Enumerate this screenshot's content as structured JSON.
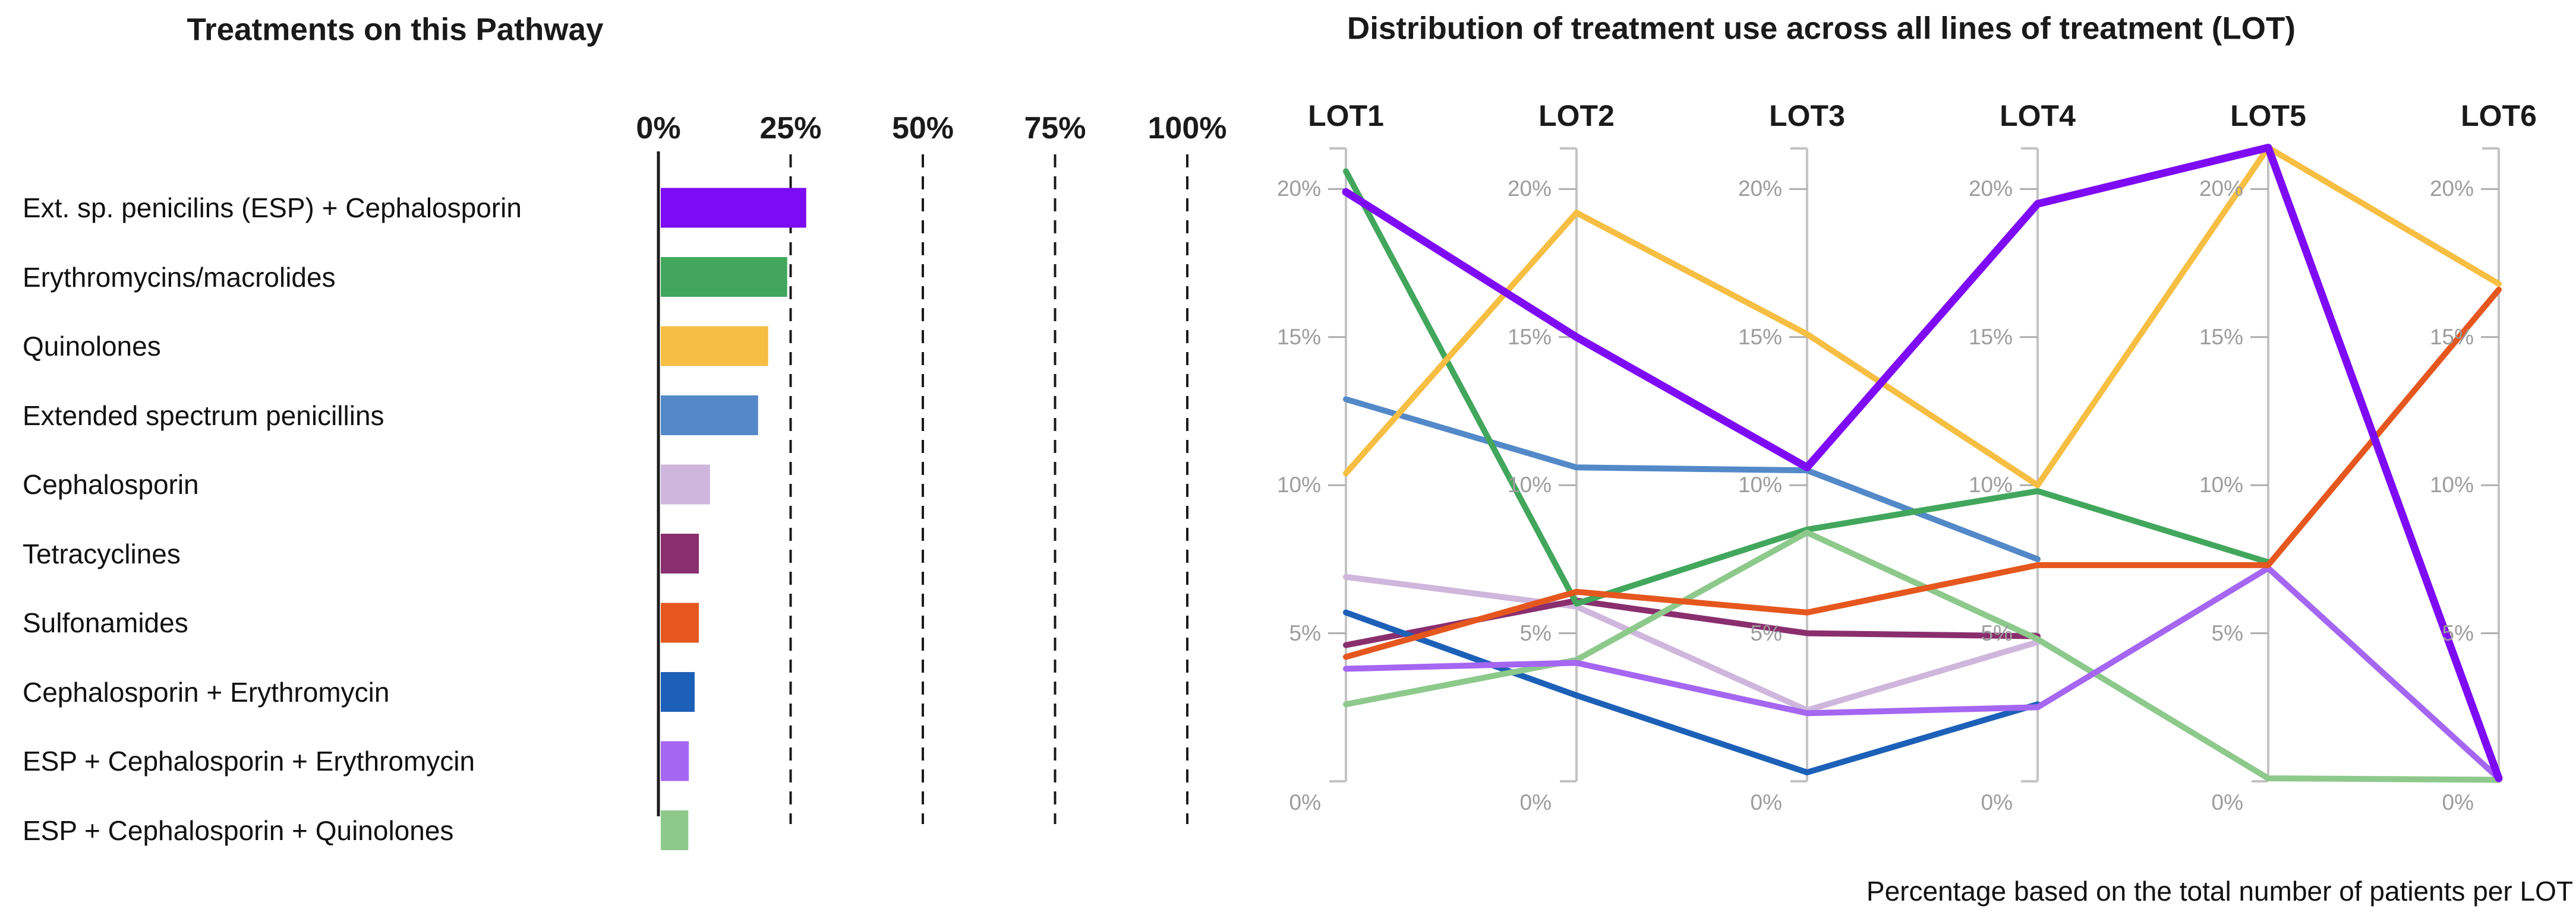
{
  "left_chart": {
    "title": "Treatments on this Pathway"
  },
  "right_chart": {
    "title": "Distribution of treatment use across all lines of treatment (LOT)",
    "footnote": "Percentage based on the total number of patients per LOT"
  },
  "chart_data": [
    {
      "type": "bar",
      "orientation": "horizontal",
      "title": "Treatments on this Pathway",
      "categories": [
        "Ext. sp. penicilins (ESP) + Cephalosporin",
        "Erythromycins/macrolides",
        "Quinolones",
        "Extended spectrum penicillins",
        "Cephalosporin",
        "Tetracyclines",
        "Sulfonamides",
        "Cephalosporin + Erythromycin",
        "ESP + Cephalosporin + Erythromycin",
        "ESP + Cephalosporin + Quinolones"
      ],
      "values": [
        27.5,
        23.9,
        20.3,
        18.4,
        9.3,
        7.2,
        7.2,
        6.4,
        5.3,
        5.2
      ],
      "colors": [
        "#7E0BF5",
        "#42A75C",
        "#F6BE42",
        "#5389C8",
        "#CFB6DC",
        "#8A2E6E",
        "#E5571E",
        "#1D60B8",
        "#A566F2",
        "#8DC98B"
      ],
      "x_ticks": [
        "0%",
        "25%",
        "50%",
        "75%",
        "100%"
      ],
      "xlim": [
        0,
        100
      ],
      "grid": "vertical dashed at 25/50/75/100, solid axis at 0"
    },
    {
      "type": "line",
      "variant": "parallel-coordinates",
      "title": "Distribution of treatment use across all lines of treatment (LOT)",
      "footnote": "Percentage based on the total number of patients per LOT",
      "x": [
        "LOT1",
        "LOT2",
        "LOT3",
        "LOT4",
        "LOT5",
        "LOT6"
      ],
      "y_ticks": [
        "0%",
        "5%",
        "10%",
        "15%",
        "20%"
      ],
      "ylim": [
        0,
        21.5
      ],
      "legend_position": "none",
      "series": [
        {
          "name": "Cephalosporin",
          "color": "#CFB6DC",
          "values": [
            6.9,
            5.9,
            2.4,
            4.7,
            null,
            null
          ]
        },
        {
          "name": "Tetracyclines",
          "color": "#8A2E6E",
          "values": [
            4.6,
            6.1,
            5.0,
            4.9,
            null,
            null
          ]
        },
        {
          "name": "Cephalosporin + Erythromycin",
          "color": "#1D60B8",
          "values": [
            5.7,
            2.9,
            0.3,
            2.6,
            null,
            null
          ]
        },
        {
          "name": "Extended spectrum penicillins",
          "color": "#5389C8",
          "values": [
            12.9,
            10.6,
            10.5,
            7.5,
            null,
            null
          ]
        },
        {
          "name": "Erythromycins/macrolides",
          "color": "#42A75C",
          "values": [
            20.6,
            6.0,
            8.5,
            9.8,
            7.4,
            null
          ]
        },
        {
          "name": "ESP + Cephalosporin + Quinolones",
          "color": "#8DC98B",
          "values": [
            2.6,
            4.1,
            8.4,
            4.8,
            0.1,
            0.05
          ]
        },
        {
          "name": "ESP + Cephalosporin + Erythromycin",
          "color": "#A566F2",
          "values": [
            3.8,
            4.0,
            2.3,
            2.5,
            7.2,
            0.1
          ]
        },
        {
          "name": "Sulfonamides",
          "color": "#E5571E",
          "values": [
            4.2,
            6.4,
            5.7,
            7.3,
            7.3,
            16.6
          ]
        },
        {
          "name": "Quinolones",
          "color": "#F6BE42",
          "values": [
            10.4,
            19.2,
            15.1,
            10.0,
            21.4,
            16.8
          ]
        },
        {
          "name": "Ext. sp. penicilins (ESP) + Cephalosporin",
          "color": "#7E0BF5",
          "values": [
            19.9,
            15.0,
            10.6,
            19.5,
            21.4,
            0.1
          ],
          "emphasis": true
        }
      ]
    }
  ]
}
